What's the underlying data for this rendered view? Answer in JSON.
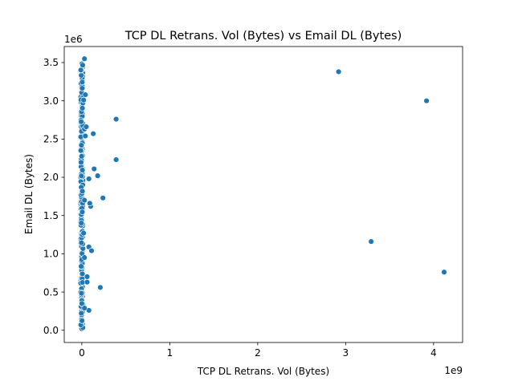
{
  "chart_data": {
    "type": "scatter",
    "title": "TCP DL Retrans. Vol (Bytes) vs Email DL (Bytes)",
    "xlabel": "TCP DL Retrans. Vol (Bytes)",
    "ylabel": "Email DL (Bytes)",
    "x_offset_label": "1e9",
    "y_offset_label": "1e6",
    "x_ticks": [
      0,
      1,
      2,
      3,
      4
    ],
    "x_tick_labels": [
      "0",
      "1",
      "2",
      "3",
      "4"
    ],
    "y_ticks": [
      0.0,
      0.5,
      1.0,
      1.5,
      2.0,
      2.5,
      3.0,
      3.5
    ],
    "y_tick_labels": [
      "0.0",
      "0.5",
      "1.0",
      "1.5",
      "2.0",
      "2.5",
      "3.0",
      "3.5"
    ],
    "xlim": [
      -0.2,
      4.33
    ],
    "ylim": [
      -0.16,
      3.71
    ],
    "grid": false,
    "marker_color": "#1f77b4",
    "marker_edge_color": "#ffffff",
    "outlier_points": [
      {
        "x": 2.92,
        "y": 3.38
      },
      {
        "x": 3.92,
        "y": 3.0
      },
      {
        "x": 3.29,
        "y": 1.16
      },
      {
        "x": 4.12,
        "y": 0.76
      },
      {
        "x": 0.39,
        "y": 2.76
      },
      {
        "x": 0.39,
        "y": 2.23
      },
      {
        "x": 0.13,
        "y": 2.57
      },
      {
        "x": 0.14,
        "y": 2.11
      },
      {
        "x": 0.18,
        "y": 2.02
      },
      {
        "x": 0.08,
        "y": 1.98
      },
      {
        "x": 0.24,
        "y": 1.73
      },
      {
        "x": 0.1,
        "y": 1.62
      },
      {
        "x": 0.09,
        "y": 1.66
      },
      {
        "x": 0.08,
        "y": 1.09
      },
      {
        "x": 0.11,
        "y": 1.04
      },
      {
        "x": 0.21,
        "y": 0.56
      },
      {
        "x": 0.08,
        "y": 0.26
      },
      {
        "x": 0.06,
        "y": 0.63
      },
      {
        "x": 0.06,
        "y": 0.7
      },
      {
        "x": 0.03,
        "y": 3.55
      },
      {
        "x": 0.04,
        "y": 3.08
      },
      {
        "x": 0.03,
        "y": 2.63
      },
      {
        "x": 0.05,
        "y": 2.66
      },
      {
        "x": 0.04,
        "y": 2.54
      },
      {
        "x": 0.03,
        "y": 1.7
      },
      {
        "x": 0.03,
        "y": 0.95
      },
      {
        "x": 0.02,
        "y": 3.01
      },
      {
        "x": 0.03,
        "y": 0.29
      },
      {
        "x": 0.02,
        "y": 1.27
      }
    ],
    "dense_cluster": {
      "x": 0.0,
      "x_spread": 0.012,
      "y_min": 0.02,
      "y_max": 3.58,
      "count": 260
    }
  }
}
